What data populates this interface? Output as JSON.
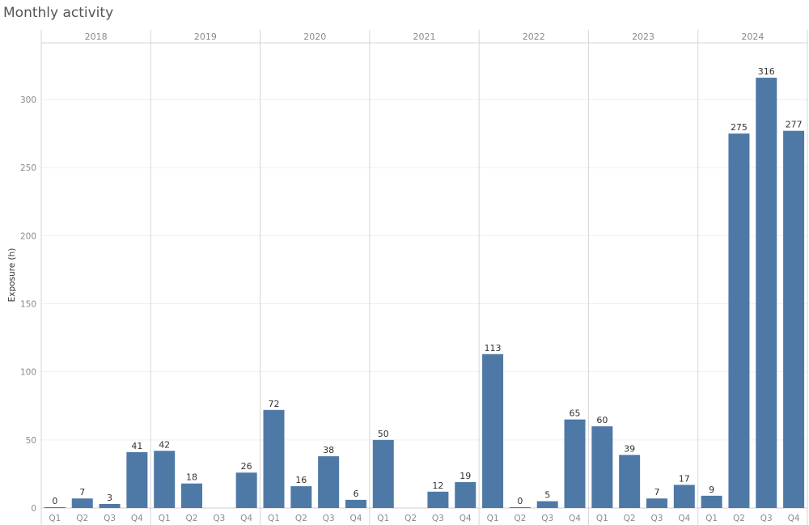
{
  "title": "Monthly activity",
  "chart_data": {
    "type": "bar",
    "title": "Monthly activity",
    "ylabel": "Exposure (h)",
    "xlabel": "",
    "ylim": [
      0,
      340
    ],
    "yticks": [
      0,
      50,
      100,
      150,
      200,
      250,
      300
    ],
    "grid": true,
    "bar_color": "#4e79a7",
    "years": [
      "2018",
      "2019",
      "2020",
      "2021",
      "2022",
      "2023",
      "2024"
    ],
    "quarters": [
      "Q1",
      "Q2",
      "Q3",
      "Q4"
    ],
    "values": [
      [
        0,
        7,
        3,
        41
      ],
      [
        42,
        18,
        null,
        26
      ],
      [
        72,
        16,
        38,
        6
      ],
      [
        50,
        null,
        12,
        19
      ],
      [
        113,
        0,
        5,
        65
      ],
      [
        60,
        39,
        7,
        17
      ],
      [
        9,
        275,
        316,
        277
      ]
    ]
  }
}
